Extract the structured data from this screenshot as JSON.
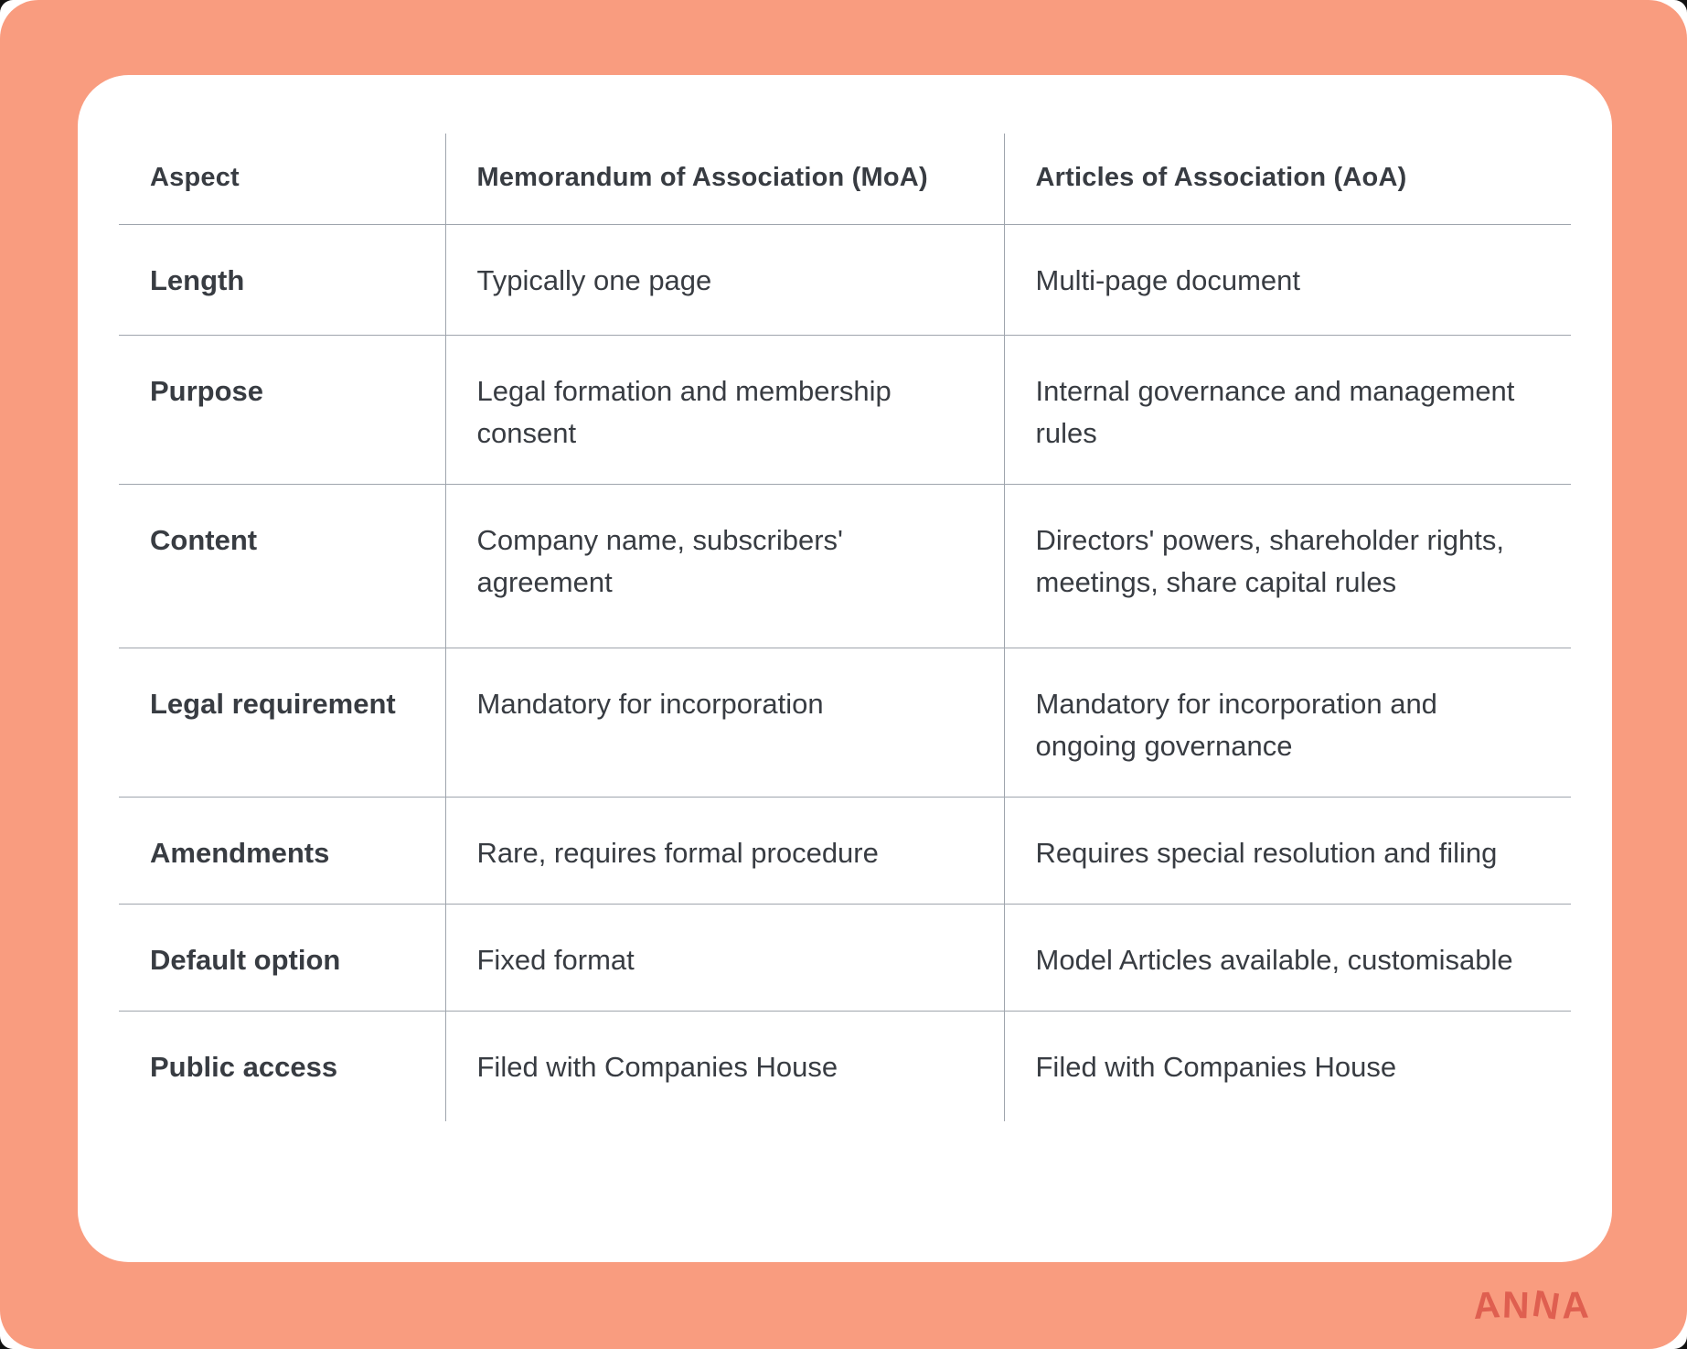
{
  "brand": {
    "name": "ANNA",
    "color": "#DF5F50"
  },
  "colors": {
    "background": "#F99C7F",
    "card": "#FFFFFF",
    "text": "#383C42",
    "grid_line": "#9FA5AD"
  },
  "table": {
    "columns": [
      "Aspect",
      "Memorandum of Association (MoA)",
      "Articles of Association (AoA)"
    ],
    "rows": [
      {
        "aspect": "Length",
        "moa": "Typically one page",
        "aoa": "Multi-page document"
      },
      {
        "aspect": "Purpose",
        "moa": "Legal formation and membership consent",
        "aoa": "Internal governance and management rules"
      },
      {
        "aspect": "Content",
        "moa": "Company name, subscribers' agreement",
        "aoa": "Directors' powers, shareholder rights, meetings, share capital rules"
      },
      {
        "aspect": "Legal requirement",
        "moa": "Mandatory for incorporation",
        "aoa": "Mandatory for incorporation and ongoing governance"
      },
      {
        "aspect": "Amendments",
        "moa": "Rare, requires formal procedure",
        "aoa": "Requires special resolution and filing"
      },
      {
        "aspect": "Default option",
        "moa": "Fixed format",
        "aoa": "Model Articles available, customisable"
      },
      {
        "aspect": "Public access",
        "moa": "Filed with Companies House",
        "aoa": "Filed with Companies House"
      }
    ]
  }
}
